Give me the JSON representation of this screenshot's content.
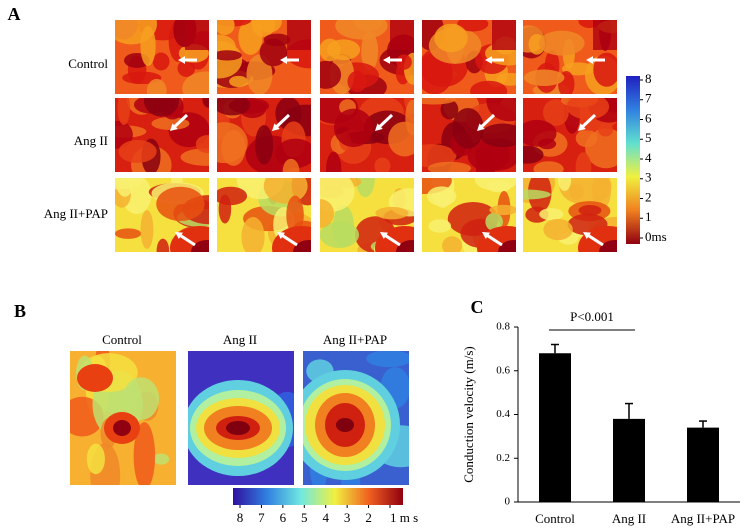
{
  "panel_labels": [
    "A",
    "B"
  ],
  "panel_a": {
    "rows": [
      "Control",
      "Ang II",
      "Ang II+PAP"
    ],
    "colorbar_ticks": [
      8,
      7,
      6,
      5,
      4,
      3,
      2,
      1,
      {
        "value": 0,
        "label": "0ms"
      }
    ]
  },
  "panel_b": {
    "titles": [
      "Control",
      "Ang II",
      "Ang II+PAP"
    ],
    "colorbar_ticks": [
      8,
      7,
      6,
      5,
      4,
      3,
      2,
      {
        "value": 1,
        "label": "1 m s"
      }
    ]
  },
  "chart_data": {
    "type": "bar",
    "panel_label": "C",
    "y_label": "Conduction velocity (m/s)",
    "annotation": "P<0.001",
    "categories": [
      "Control",
      "Ang II",
      "Ang II+PAP"
    ],
    "values": [
      0.68,
      0.38,
      0.34
    ],
    "errors": [
      0.04,
      0.07,
      0.03
    ],
    "color": "#000000",
    "ylim": [
      0,
      0.8
    ],
    "yticks": [
      0,
      0.2,
      0.4,
      0.6,
      0.8
    ]
  }
}
